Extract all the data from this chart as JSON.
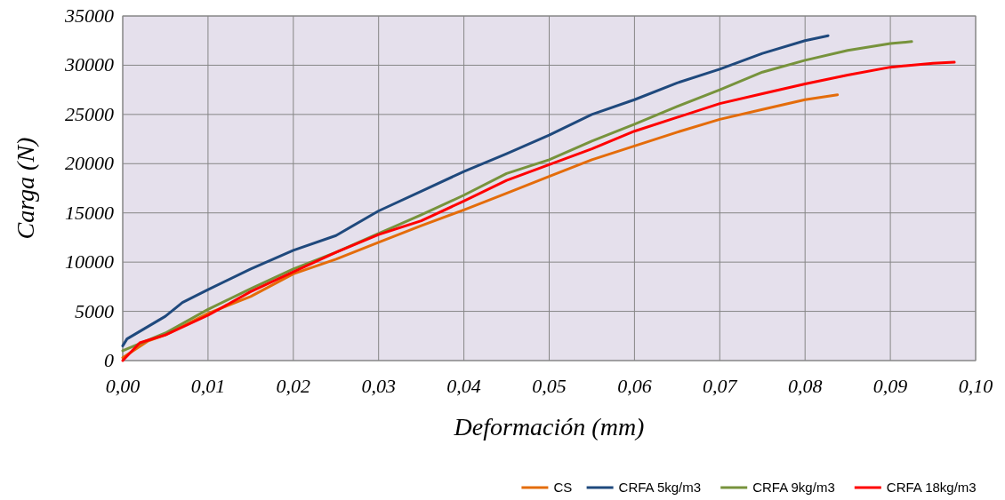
{
  "chart_data": {
    "type": "line",
    "xlabel": "Deformación (mm)",
    "ylabel": "Carga (N)",
    "xlim": [
      0,
      0.1
    ],
    "ylim": [
      0,
      35000
    ],
    "xticks": [
      {
        "value": 0,
        "label": "0,00"
      },
      {
        "value": 0.01,
        "label": "0,01"
      },
      {
        "value": 0.02,
        "label": "0,02"
      },
      {
        "value": 0.03,
        "label": "0,03"
      },
      {
        "value": 0.04,
        "label": "0,04"
      },
      {
        "value": 0.05,
        "label": "0,05"
      },
      {
        "value": 0.06,
        "label": "0,06"
      },
      {
        "value": 0.07,
        "label": "0,07"
      },
      {
        "value": 0.08,
        "label": "0,08"
      },
      {
        "value": 0.09,
        "label": "0,09"
      },
      {
        "value": 0.1,
        "label": "0,10"
      }
    ],
    "yticks": [
      0,
      5000,
      10000,
      15000,
      20000,
      25000,
      30000,
      35000
    ],
    "grid": true,
    "legend": "bottom right",
    "line_style": "solid",
    "series": [
      {
        "name": "CS",
        "color": "#e46c0a",
        "x": [
          0,
          0.003,
          0.005,
          0.01,
          0.015,
          0.02,
          0.025,
          0.03,
          0.035,
          0.04,
          0.045,
          0.05,
          0.055,
          0.06,
          0.065,
          0.07,
          0.075,
          0.08,
          0.0838
        ],
        "values": [
          300,
          2000,
          2600,
          4800,
          6500,
          8800,
          10300,
          12000,
          13700,
          15300,
          17000,
          18700,
          20400,
          21800,
          23200,
          24500,
          25500,
          26500,
          27000
        ]
      },
      {
        "name": "CRFA 5kg/m3",
        "color": "#1f497d",
        "x": [
          0,
          0.0005,
          0.005,
          0.007,
          0.01,
          0.015,
          0.02,
          0.025,
          0.03,
          0.035,
          0.04,
          0.045,
          0.05,
          0.055,
          0.06,
          0.065,
          0.07,
          0.075,
          0.08,
          0.0827
        ],
        "values": [
          1500,
          2200,
          4500,
          5900,
          7200,
          9300,
          11200,
          12700,
          15200,
          17200,
          19200,
          21000,
          22900,
          25000,
          26500,
          28200,
          29600,
          31200,
          32500,
          33000
        ]
      },
      {
        "name": "CRFA 9kg/m3",
        "color": "#77933c",
        "x": [
          0,
          0.005,
          0.01,
          0.015,
          0.02,
          0.025,
          0.03,
          0.035,
          0.04,
          0.045,
          0.05,
          0.055,
          0.06,
          0.065,
          0.07,
          0.075,
          0.08,
          0.085,
          0.09,
          0.0925
        ],
        "values": [
          1000,
          2800,
          5200,
          7300,
          9300,
          11000,
          12900,
          14800,
          16800,
          19000,
          20400,
          22300,
          24000,
          25800,
          27500,
          29300,
          30500,
          31500,
          32200,
          32400
        ]
      },
      {
        "name": "CRFA 18kg/m3",
        "color": "#ff0000",
        "x": [
          0,
          0.002,
          0.005,
          0.01,
          0.015,
          0.02,
          0.025,
          0.03,
          0.035,
          0.04,
          0.045,
          0.05,
          0.055,
          0.06,
          0.065,
          0.07,
          0.075,
          0.08,
          0.085,
          0.09,
          0.095,
          0.0975
        ],
        "values": [
          0,
          1800,
          2600,
          4600,
          7000,
          9000,
          11000,
          12800,
          14200,
          16200,
          18300,
          19900,
          21500,
          23300,
          24700,
          26100,
          27100,
          28100,
          29000,
          29800,
          30200,
          30300
        ]
      }
    ]
  }
}
